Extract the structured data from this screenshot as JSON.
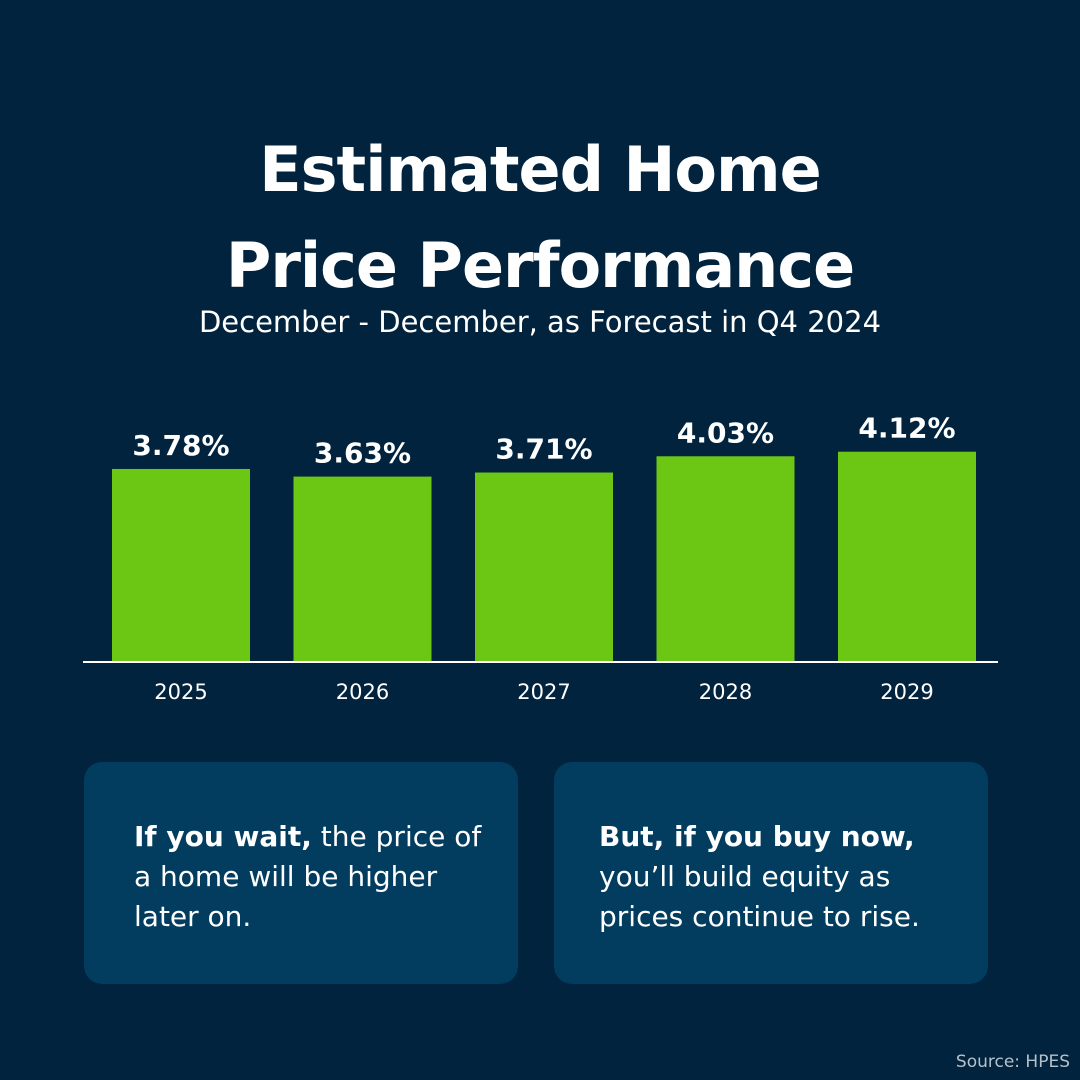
{
  "header": {
    "title_line1": "Estimated Home",
    "title_line2": "Price Performance",
    "subtitle": "December - December, as Forecast in Q4 2024"
  },
  "chart_data": {
    "type": "bar",
    "categories": [
      "2025",
      "2026",
      "2027",
      "2028",
      "2029"
    ],
    "values": [
      3.78,
      3.63,
      3.71,
      4.03,
      4.12
    ],
    "value_labels": [
      "3.78%",
      "3.63%",
      "3.71%",
      "4.03%",
      "4.12%"
    ],
    "title": "Estimated Home Price Performance",
    "subtitle": "December - December, as Forecast in Q4 2024",
    "xlabel": "",
    "ylabel": "",
    "grid": false,
    "legend": "none",
    "bar_color": "#6cc715"
  },
  "cards": {
    "left_bold": "If you wait,",
    "left_rest": " the price of a home will be higher later on.",
    "right_bold": "But, if you buy now,",
    "right_rest": " you’ll build equity as prices continue to rise."
  },
  "footer": {
    "source": "Source: HPES"
  },
  "colors": {
    "background": "#01233d",
    "card": "#023c5f",
    "bar": "#6cc715",
    "text": "#ffffff"
  }
}
